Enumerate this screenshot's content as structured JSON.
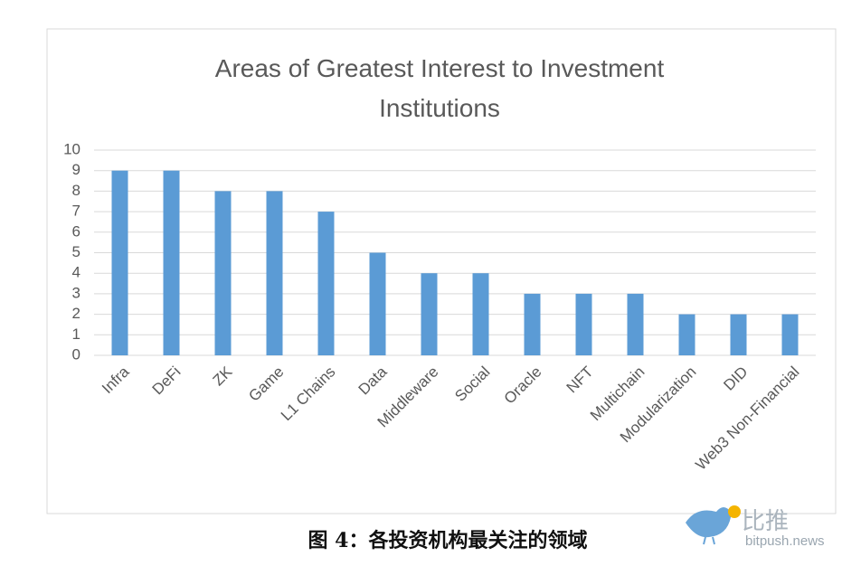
{
  "chart_data": {
    "type": "bar",
    "title": "Areas of Greatest Interest to Investment Institutions",
    "categories": [
      "Infra",
      "DeFi",
      "ZK",
      "Game",
      "L1 Chains",
      "Data",
      "Middleware",
      "Social",
      "Oracle",
      "NFT",
      "Multichain",
      "Modularization",
      "DID",
      "Web3 Non-Financial"
    ],
    "values": [
      9,
      9,
      8,
      8,
      7,
      5,
      4,
      4,
      3,
      3,
      3,
      2,
      2,
      2
    ],
    "color": "#5b9bd5",
    "ylim": [
      0,
      10
    ],
    "yticks": [
      0,
      1,
      2,
      3,
      4,
      5,
      6,
      7,
      8,
      9,
      10
    ],
    "grid": true
  },
  "caption": "图 4：各投资机构最关注的领域",
  "watermark": {
    "name": "比推",
    "site": "bitpush.news"
  }
}
